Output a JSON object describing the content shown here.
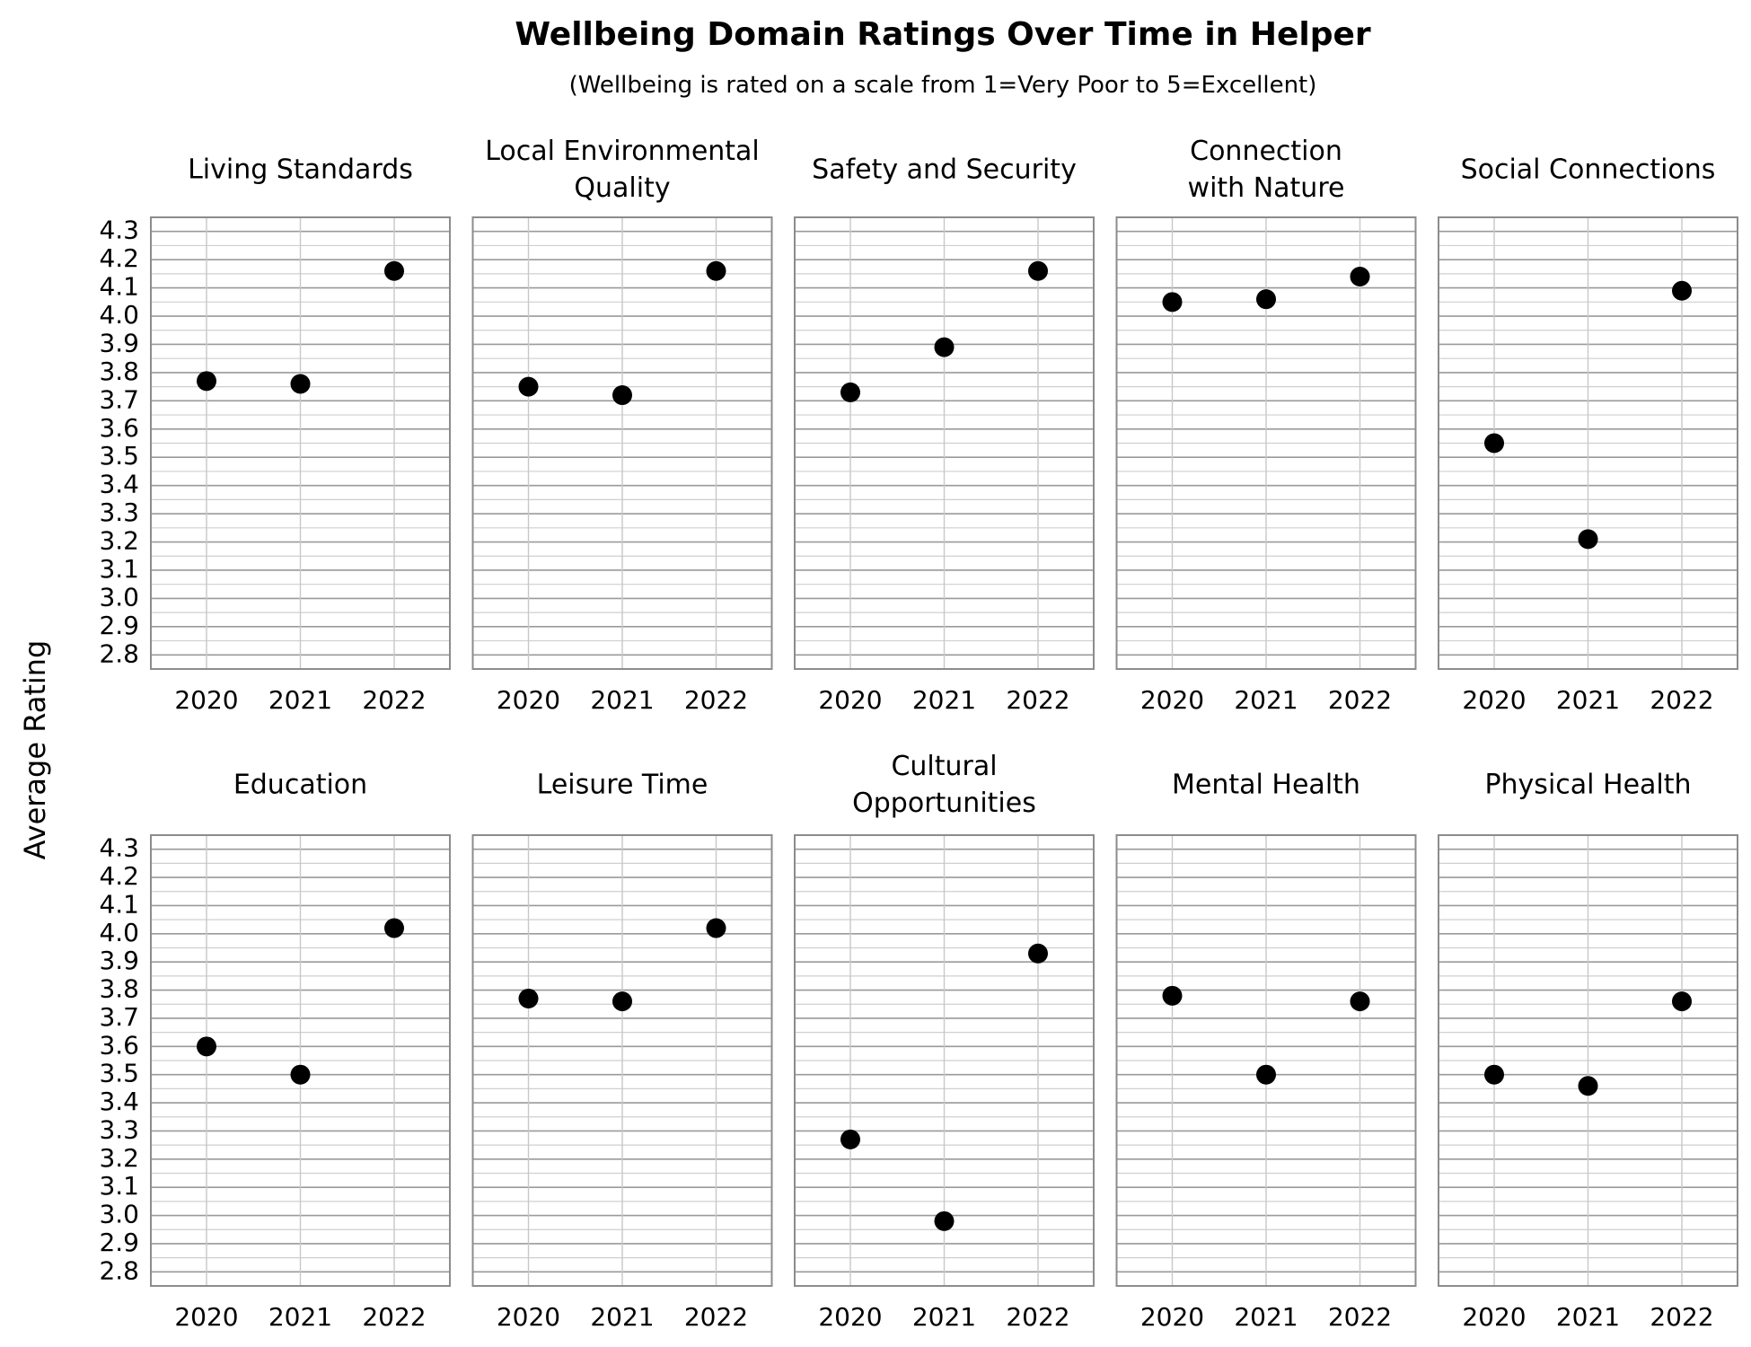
{
  "chart_data": {
    "type": "scatter",
    "title": "Wellbeing Domain Ratings Over Time in Helper",
    "subtitle": "(Wellbeing is rated on a scale from 1=Very Poor to 5=Excellent)",
    "ylabel": "Average Rating",
    "ylim": [
      2.75,
      4.35
    ],
    "yticks": [
      "2.8",
      "2.9",
      "3.0",
      "3.1",
      "3.2",
      "3.3",
      "3.4",
      "3.5",
      "3.6",
      "3.7",
      "3.8",
      "3.9",
      "4.0",
      "4.1",
      "4.2",
      "4.3"
    ],
    "x": [
      "2020",
      "2021",
      "2022"
    ],
    "grid": true,
    "marker_color": "#000000",
    "panels": [
      {
        "title": [
          "Living Standards"
        ],
        "values": [
          3.77,
          3.76,
          4.16
        ]
      },
      {
        "title": [
          "Local Environmental",
          "Quality"
        ],
        "values": [
          3.75,
          3.72,
          4.16
        ]
      },
      {
        "title": [
          "Safety and Security"
        ],
        "values": [
          3.73,
          3.89,
          4.16
        ]
      },
      {
        "title": [
          "Connection",
          "with Nature"
        ],
        "values": [
          4.05,
          4.06,
          4.14
        ]
      },
      {
        "title": [
          "Social Connections"
        ],
        "values": [
          3.55,
          3.21,
          4.09
        ]
      },
      {
        "title": [
          "Education"
        ],
        "values": [
          3.6,
          3.5,
          4.02
        ]
      },
      {
        "title": [
          "Leisure Time"
        ],
        "values": [
          3.77,
          3.76,
          4.02
        ]
      },
      {
        "title": [
          "Cultural",
          "Opportunities"
        ],
        "values": [
          3.27,
          2.98,
          3.93
        ]
      },
      {
        "title": [
          "Mental Health"
        ],
        "values": [
          3.78,
          3.5,
          3.76
        ]
      },
      {
        "title": [
          "Physical Health"
        ],
        "values": [
          3.5,
          3.46,
          3.76
        ]
      }
    ]
  }
}
